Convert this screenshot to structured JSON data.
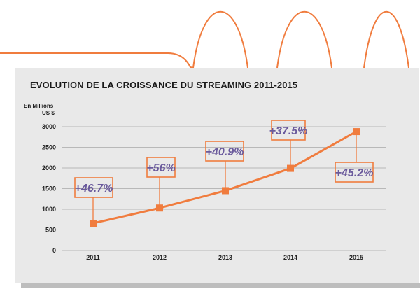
{
  "chart_data": {
    "type": "line",
    "title": "EVOLUTION DE LA CROISSANCE DU STREAMING 2011-2015",
    "ylabel_lines": [
      "En Millions",
      "US $"
    ],
    "categories": [
      "2011",
      "2012",
      "2013",
      "2014",
      "2015"
    ],
    "values": [
      660,
      1030,
      1450,
      1990,
      2880
    ],
    "ylim": [
      0,
      3000
    ],
    "yticks": [
      0,
      500,
      1000,
      1500,
      2000,
      2500,
      3000
    ],
    "grid": true,
    "annotations": [
      "+46.7%",
      "+56%",
      "+40.9%",
      "+37.5%",
      "+45.2%"
    ],
    "colors": {
      "line": "#f07c3e",
      "callout_border": "#f07c3e",
      "callout_text": "#6a5a9c",
      "grid": "#b8b8b8",
      "panel": "#e9e9e9"
    }
  }
}
